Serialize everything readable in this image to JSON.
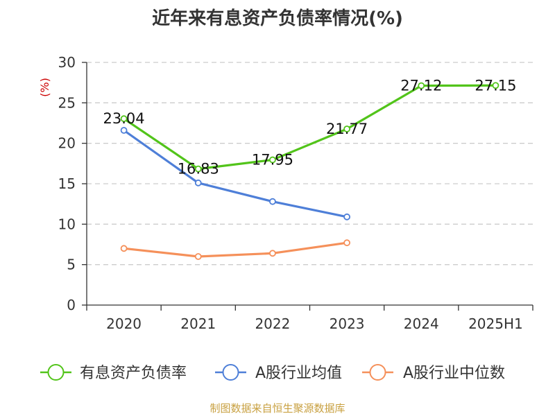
{
  "chart_data": {
    "type": "line",
    "title": "近年来有息资产负债率情况(%)",
    "ylabel": "(%)",
    "xlabel": "",
    "categories": [
      "2020",
      "2021",
      "2022",
      "2023",
      "2024",
      "2025H1"
    ],
    "ylim": [
      0,
      30
    ],
    "yticks": [
      0,
      5,
      10,
      15,
      20,
      25,
      30
    ],
    "grid": true,
    "legend_position": "bottom",
    "series": [
      {
        "name": "有息资产负债率",
        "color": "#52c41a",
        "values": [
          23.04,
          16.83,
          17.95,
          21.77,
          27.12,
          27.15
        ],
        "labels": [
          "23.04",
          "16.83",
          "17.95",
          "21.77",
          "27.12",
          "27.15"
        ]
      },
      {
        "name": "A股行业均值",
        "color": "#4e7fd8",
        "values": [
          21.6,
          15.1,
          12.8,
          10.9,
          null,
          null
        ]
      },
      {
        "name": "A股行业中位数",
        "color": "#f5905a",
        "values": [
          7.0,
          6.0,
          6.4,
          7.7,
          null,
          null
        ]
      }
    ]
  },
  "source": "制图数据来自恒生聚源数据库"
}
